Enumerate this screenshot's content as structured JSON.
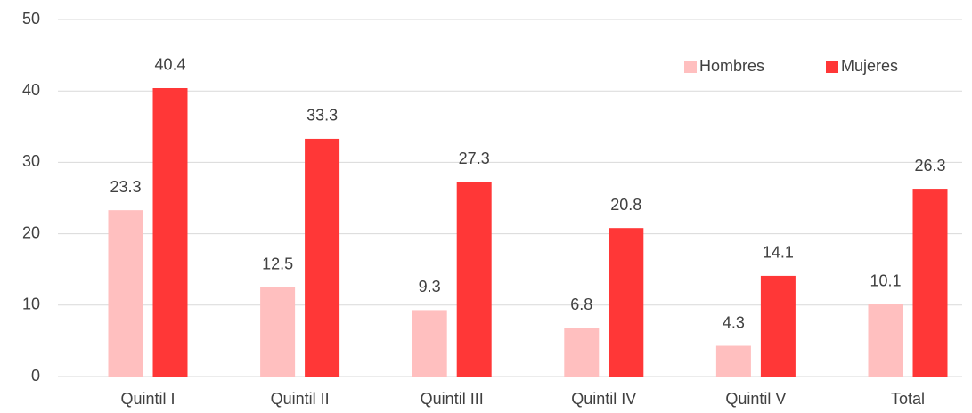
{
  "chart_data": {
    "type": "bar",
    "categories": [
      "Quintil I",
      "Quintil II",
      "Quintil III",
      "Quintil IV",
      "Quintil V",
      "Total"
    ],
    "series": [
      {
        "name": "Hombres",
        "color": "#ffbfbf",
        "values": [
          23.3,
          12.5,
          9.3,
          6.8,
          4.3,
          10.1
        ]
      },
      {
        "name": "Mujeres",
        "color": "#ff3737",
        "values": [
          40.4,
          33.3,
          27.3,
          20.8,
          14.1,
          26.3
        ]
      }
    ],
    "ylim": [
      0,
      50
    ],
    "yticks": [
      0,
      10,
      20,
      30,
      40,
      50
    ],
    "grid": true,
    "legend": "top-right"
  }
}
